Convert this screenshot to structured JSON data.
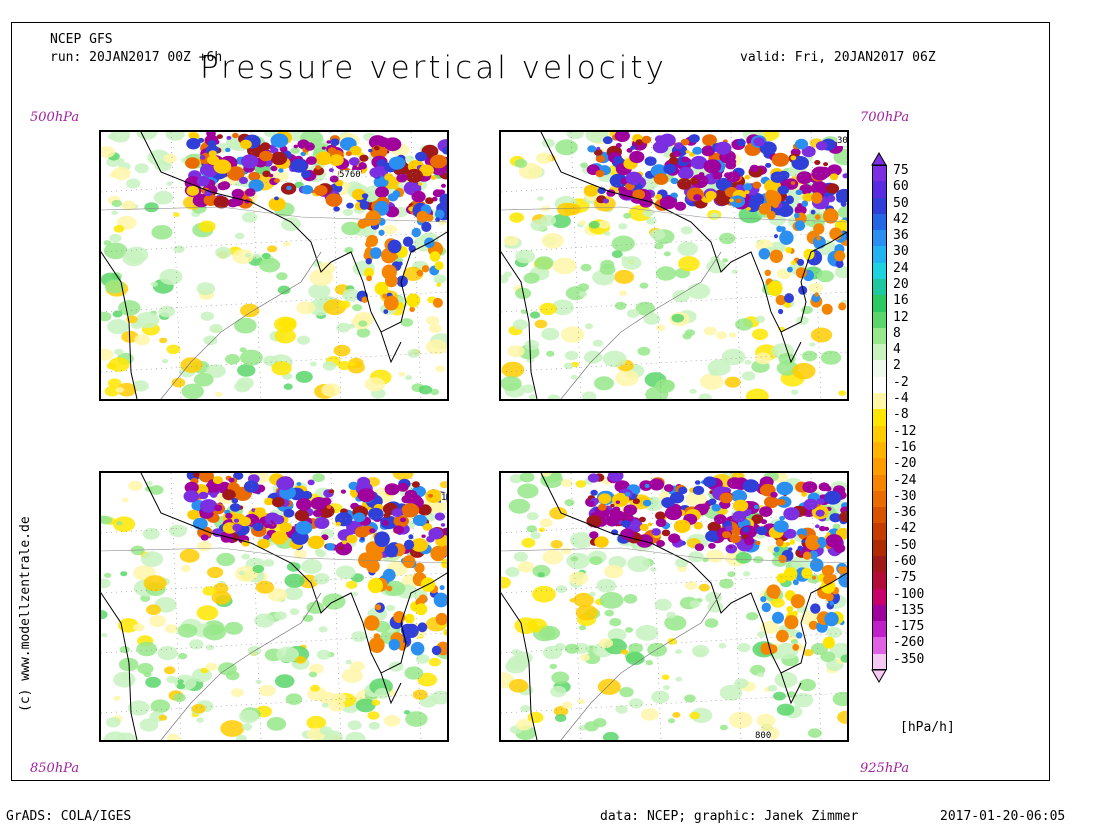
{
  "header": {
    "model": "NCEP GFS",
    "run": "run: 20JAN2017 00Z +6h",
    "valid": "valid: Fri, 20JAN2017 06Z",
    "title": "Pressure vertical velocity"
  },
  "panels": [
    {
      "level": "500hPa",
      "contour_label": "5760"
    },
    {
      "level": "700hPa",
      "contour_label": "30"
    },
    {
      "level": "850hPa",
      "contour_label": "1"
    },
    {
      "level": "925hPa",
      "contour_label": "800"
    }
  ],
  "legend": {
    "unit": "[hPa/h]",
    "labels": [
      "75",
      "60",
      "50",
      "42",
      "36",
      "30",
      "24",
      "20",
      "16",
      "12",
      "8",
      "4",
      "2",
      "-2",
      "-4",
      "-8",
      "-12",
      "-16",
      "-20",
      "-24",
      "-30",
      "-36",
      "-42",
      "-50",
      "-60",
      "-75",
      "-100",
      "-135",
      "-175",
      "-260",
      "-350"
    ],
    "colors": [
      "#7b2fe0",
      "#5a2be0",
      "#2f3fd8",
      "#2366e6",
      "#2a8ff0",
      "#22b4f0",
      "#1ed2e0",
      "#1ec8a0",
      "#2cc860",
      "#5ad66a",
      "#96e88a",
      "#c8f2c0",
      "#eefbea",
      "#ffffff",
      "#fff6a8",
      "#ffe600",
      "#ffcc00",
      "#ffb400",
      "#ff9c00",
      "#f58400",
      "#ea6c00",
      "#d85200",
      "#c43c00",
      "#b02a00",
      "#a01818",
      "#b40c38",
      "#c8006a",
      "#a0009c",
      "#c020c8",
      "#e060e6",
      "#f8c8f4"
    ]
  },
  "watermark": "(c) www.modellzentrale.de",
  "footer": {
    "left": "GrADS: COLA/IGES",
    "credit": "data: NCEP; graphic: Janek Zimmer",
    "timestamp": "2017-01-20-06:05"
  }
}
